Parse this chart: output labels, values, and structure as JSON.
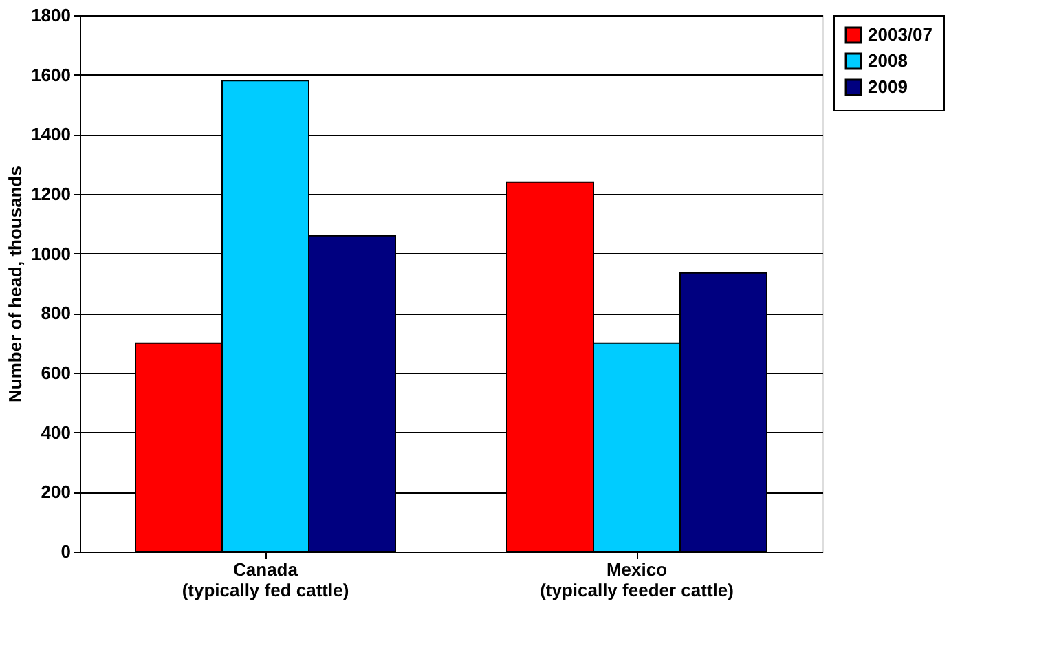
{
  "chart_data": {
    "type": "bar",
    "ylabel": "Number of head, thousands",
    "categories": [
      "Canada\n(typically fed cattle)",
      "Mexico\n(typically feeder cattle)"
    ],
    "series": [
      {
        "name": "2003/07",
        "color": "#ff0000",
        "values": [
          700,
          1240
        ]
      },
      {
        "name": "2008",
        "color": "#00ccff",
        "values": [
          1580,
          700
        ]
      },
      {
        "name": "2009",
        "color": "#000080",
        "values": [
          1060,
          935
        ]
      }
    ],
    "ylim": [
      0,
      1800
    ],
    "yticks": [
      0,
      200,
      400,
      600,
      800,
      1000,
      1200,
      1400,
      1600,
      1800
    ],
    "grid": "y",
    "legend": "right"
  }
}
